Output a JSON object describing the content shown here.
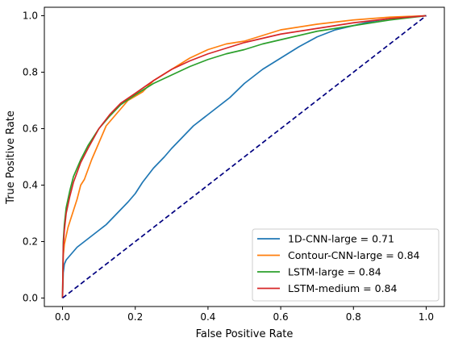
{
  "chart_data": {
    "type": "line",
    "xlabel": "False Positive Rate",
    "ylabel": "True Positive Rate",
    "xlim": [
      -0.05,
      1.05
    ],
    "ylim": [
      -0.03,
      1.03
    ],
    "xticks": [
      0.0,
      0.2,
      0.4,
      0.6,
      0.8,
      1.0
    ],
    "yticks": [
      0.0,
      0.2,
      0.4,
      0.6,
      0.8,
      1.0
    ],
    "xtick_labels": [
      "0.0",
      "0.2",
      "0.4",
      "0.6",
      "0.8",
      "1.0"
    ],
    "ytick_labels": [
      "0.0",
      "0.2",
      "0.4",
      "0.6",
      "0.8",
      "1.0"
    ],
    "grid": false,
    "legend_position": "lower-right",
    "series": [
      {
        "name": "1D-CNN-large = 0.71",
        "color": "#1f77b4",
        "x": [
          0,
          0.002,
          0.005,
          0.01,
          0.02,
          0.04,
          0.06,
          0.08,
          0.1,
          0.12,
          0.15,
          0.18,
          0.2,
          0.22,
          0.25,
          0.28,
          0.3,
          0.33,
          0.36,
          0.4,
          0.43,
          0.46,
          0.5,
          0.55,
          0.6,
          0.65,
          0.7,
          0.75,
          0.8,
          0.85,
          0.9,
          0.95,
          1.0
        ],
        "y": [
          0,
          0.09,
          0.12,
          0.135,
          0.15,
          0.18,
          0.2,
          0.22,
          0.24,
          0.26,
          0.3,
          0.34,
          0.37,
          0.41,
          0.46,
          0.5,
          0.53,
          0.57,
          0.61,
          0.65,
          0.68,
          0.71,
          0.76,
          0.81,
          0.85,
          0.89,
          0.925,
          0.95,
          0.965,
          0.98,
          0.99,
          0.995,
          1.0
        ]
      },
      {
        "name": "Contour-CNN-large = 0.84",
        "color": "#ff7f0e",
        "x": [
          0,
          0.002,
          0.005,
          0.01,
          0.015,
          0.02,
          0.03,
          0.04,
          0.05,
          0.06,
          0.08,
          0.1,
          0.12,
          0.14,
          0.16,
          0.18,
          0.2,
          0.22,
          0.25,
          0.3,
          0.35,
          0.4,
          0.45,
          0.5,
          0.55,
          0.6,
          0.7,
          0.8,
          0.9,
          1.0
        ],
        "y": [
          0,
          0.15,
          0.19,
          0.22,
          0.25,
          0.27,
          0.31,
          0.35,
          0.4,
          0.42,
          0.49,
          0.55,
          0.61,
          0.64,
          0.67,
          0.7,
          0.715,
          0.73,
          0.77,
          0.81,
          0.85,
          0.88,
          0.9,
          0.91,
          0.93,
          0.95,
          0.97,
          0.985,
          0.995,
          1.0
        ]
      },
      {
        "name": "LSTM-large = 0.84",
        "color": "#2ca02c",
        "x": [
          0,
          0.002,
          0.005,
          0.01,
          0.02,
          0.03,
          0.05,
          0.07,
          0.1,
          0.13,
          0.16,
          0.2,
          0.25,
          0.3,
          0.35,
          0.4,
          0.45,
          0.5,
          0.55,
          0.6,
          0.7,
          0.8,
          0.9,
          1.0
        ],
        "y": [
          0,
          0.2,
          0.26,
          0.32,
          0.38,
          0.43,
          0.49,
          0.54,
          0.6,
          0.645,
          0.685,
          0.72,
          0.76,
          0.79,
          0.82,
          0.845,
          0.865,
          0.88,
          0.9,
          0.915,
          0.945,
          0.965,
          0.985,
          1.0
        ]
      },
      {
        "name": "LSTM-medium = 0.84",
        "color": "#d62728",
        "x": [
          0,
          0.002,
          0.005,
          0.01,
          0.02,
          0.03,
          0.05,
          0.07,
          0.1,
          0.13,
          0.16,
          0.2,
          0.25,
          0.3,
          0.35,
          0.4,
          0.45,
          0.5,
          0.55,
          0.6,
          0.7,
          0.8,
          0.9,
          1.0
        ],
        "y": [
          0,
          0.18,
          0.24,
          0.3,
          0.36,
          0.41,
          0.48,
          0.53,
          0.6,
          0.65,
          0.69,
          0.725,
          0.77,
          0.81,
          0.84,
          0.865,
          0.885,
          0.905,
          0.92,
          0.935,
          0.955,
          0.975,
          0.99,
          1.0
        ]
      },
      {
        "name": "",
        "color": "#000080",
        "dashed": true,
        "x": [
          0,
          1
        ],
        "y": [
          0,
          1
        ]
      }
    ]
  }
}
